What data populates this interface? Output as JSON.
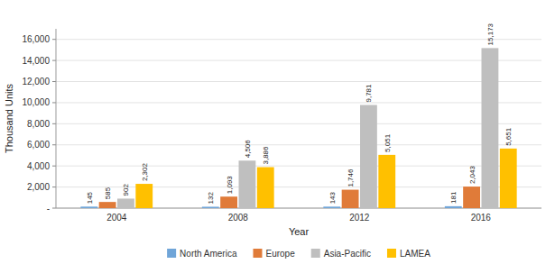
{
  "chart_data": {
    "type": "bar",
    "xlabel": "Year",
    "ylabel": "Thousand Units",
    "categories": [
      "2004",
      "2008",
      "2012",
      "2016"
    ],
    "series": [
      {
        "name": "North America",
        "color": "#70A5D8",
        "values": [
          145,
          132,
          143,
          181
        ]
      },
      {
        "name": "Europe",
        "color": "#E07B39",
        "values": [
          585,
          1093,
          1746,
          2043
        ],
        "value_labels": [
          "585",
          "1,093",
          "1,746",
          "2,043"
        ]
      },
      {
        "name": "Asia-Pacific",
        "color": "#BFBFBF",
        "values": [
          902,
          4506,
          9781,
          15173
        ],
        "value_labels": [
          "902",
          "4,506",
          "9,781",
          "15,173"
        ]
      },
      {
        "name": "LAMEA",
        "color": "#FFC000",
        "values": [
          2302,
          3886,
          5051,
          5651
        ],
        "value_labels": [
          "2,302",
          "3,886",
          "5,051",
          "5,651"
        ]
      }
    ],
    "ylim": [
      0,
      17000
    ],
    "yticks": [
      {
        "value": 0,
        "label": "-"
      },
      {
        "value": 2000,
        "label": "2,000"
      },
      {
        "value": 4000,
        "label": "4,000"
      },
      {
        "value": 6000,
        "label": "6,000"
      },
      {
        "value": 8000,
        "label": "8,000"
      },
      {
        "value": 10000,
        "label": "10,000"
      },
      {
        "value": 12000,
        "label": "12,000"
      },
      {
        "value": 14000,
        "label": "14,000"
      },
      {
        "value": 16000,
        "label": "16,000"
      }
    ],
    "grid": true,
    "data_labels": true,
    "legend": "bottom"
  }
}
